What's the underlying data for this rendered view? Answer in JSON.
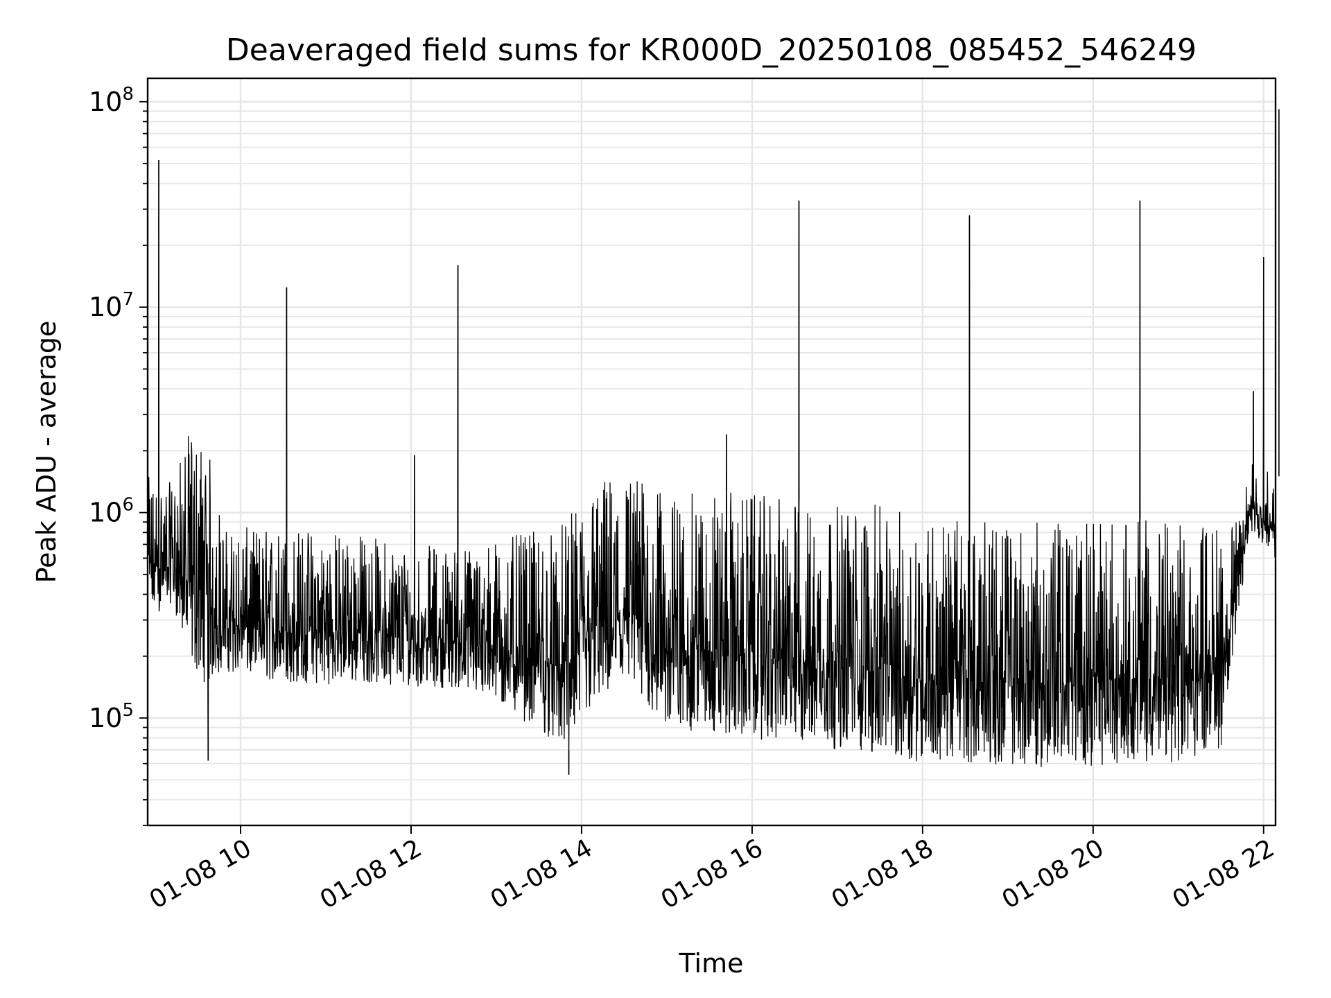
{
  "chart_data": {
    "type": "line",
    "title": "Deaveraged field sums for KR000D_20250108_085452_546249",
    "xlabel": "Time",
    "ylabel": "Peak ADU - average",
    "yscale": "log",
    "xlim_hours": [
      8.91,
      22.14
    ],
    "ylim": [
      30000,
      130000000
    ],
    "grid": true,
    "x_ticks": [
      {
        "hour": 10,
        "label": "01-08 10"
      },
      {
        "hour": 12,
        "label": "01-08 12"
      },
      {
        "hour": 14,
        "label": "01-08 14"
      },
      {
        "hour": 16,
        "label": "01-08 16"
      },
      {
        "hour": 18,
        "label": "01-08 18"
      },
      {
        "hour": 20,
        "label": "01-08 20"
      },
      {
        "hour": 22,
        "label": "01-08 22"
      }
    ],
    "y_ticks": [
      {
        "value": 100000,
        "base": "10",
        "exp": "5"
      },
      {
        "value": 1000000,
        "base": "10",
        "exp": "6"
      },
      {
        "value": 10000000,
        "base": "10",
        "exp": "7"
      },
      {
        "value": 100000000,
        "base": "10",
        "exp": "8"
      }
    ],
    "series": [
      {
        "color": "#000000",
        "envelope": [
          {
            "hour": 8.92,
            "low": 280000,
            "high": 1500000
          },
          {
            "hour": 9.2,
            "low": 350000,
            "high": 1400000
          },
          {
            "hour": 9.4,
            "low": 170000,
            "high": 2500000
          },
          {
            "hour": 9.6,
            "low": 130000,
            "high": 2300000
          },
          {
            "hour": 9.8,
            "low": 160000,
            "high": 850000
          },
          {
            "hour": 10.2,
            "low": 145000,
            "high": 850000
          },
          {
            "hour": 10.8,
            "low": 135000,
            "high": 850000
          },
          {
            "hour": 11.4,
            "low": 140000,
            "high": 800000
          },
          {
            "hour": 12.0,
            "low": 135000,
            "high": 700000
          },
          {
            "hour": 12.6,
            "low": 130000,
            "high": 700000
          },
          {
            "hour": 13.0,
            "low": 110000,
            "high": 750000
          },
          {
            "hour": 13.4,
            "low": 85000,
            "high": 800000
          },
          {
            "hour": 13.8,
            "low": 65000,
            "high": 900000
          },
          {
            "hour": 14.2,
            "low": 110000,
            "high": 1500000
          },
          {
            "hour": 14.6,
            "low": 120000,
            "high": 1600000
          },
          {
            "hour": 15.0,
            "low": 80000,
            "high": 1200000
          },
          {
            "hour": 15.6,
            "low": 75000,
            "high": 1300000
          },
          {
            "hour": 16.2,
            "low": 70000,
            "high": 1200000
          },
          {
            "hour": 16.8,
            "low": 65000,
            "high": 1100000
          },
          {
            "hour": 17.4,
            "low": 60000,
            "high": 1100000
          },
          {
            "hour": 18.0,
            "low": 55000,
            "high": 1000000
          },
          {
            "hour": 18.6,
            "low": 55000,
            "high": 900000
          },
          {
            "hour": 19.2,
            "low": 52000,
            "high": 900000
          },
          {
            "hour": 19.8,
            "low": 52000,
            "high": 900000
          },
          {
            "hour": 20.4,
            "low": 55000,
            "high": 950000
          },
          {
            "hour": 21.0,
            "low": 55000,
            "high": 900000
          },
          {
            "hour": 21.5,
            "low": 65000,
            "high": 900000
          },
          {
            "hour": 21.7,
            "low": 300000,
            "high": 900000
          },
          {
            "hour": 21.85,
            "low": 800000,
            "high": 1800000
          },
          {
            "hour": 22.14,
            "low": 550000,
            "high": 1500000
          }
        ],
        "spikes": [
          {
            "hour": 9.04,
            "value": 52000000
          },
          {
            "hour": 9.62,
            "value": 62000,
            "direction": "down"
          },
          {
            "hour": 10.54,
            "value": 12500000
          },
          {
            "hour": 12.04,
            "value": 1900000
          },
          {
            "hour": 12.55,
            "value": 16000000
          },
          {
            "hour": 13.85,
            "value": 53000,
            "direction": "down"
          },
          {
            "hour": 15.7,
            "value": 2400000
          },
          {
            "hour": 16.55,
            "value": 33000000
          },
          {
            "hour": 18.55,
            "value": 28000000
          },
          {
            "hour": 20.55,
            "value": 33000000
          },
          {
            "hour": 21.88,
            "value": 3900000
          },
          {
            "hour": 22.0,
            "value": 17500000
          },
          {
            "hour": 22.18,
            "value": 92000000
          }
        ]
      }
    ]
  }
}
